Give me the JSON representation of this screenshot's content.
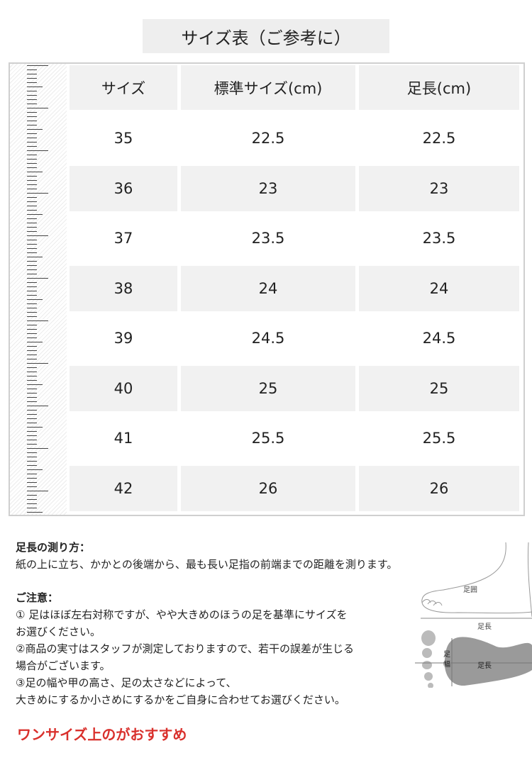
{
  "title": "サイズ表（ご参考に）",
  "table": {
    "headers": [
      "サイズ",
      "標準サイズ(cm)",
      "足長(cm)"
    ],
    "rows": [
      [
        "35",
        "22.5",
        "22.5"
      ],
      [
        "36",
        "23",
        "23"
      ],
      [
        "37",
        "23.5",
        "23.5"
      ],
      [
        "38",
        "24",
        "24"
      ],
      [
        "39",
        "24.5",
        "24.5"
      ],
      [
        "40",
        "25",
        "25"
      ],
      [
        "41",
        "25.5",
        "25.5"
      ],
      [
        "42",
        "26",
        "26"
      ]
    ]
  },
  "measure": {
    "heading": "足長の測り方：",
    "text": "紙の上に立ち、かかとの後端から、最も長い足指の前端までの距離を測ります。"
  },
  "caution": {
    "heading": "ご注意：",
    "lines": [
      "① 足はほぼ左右対称ですが、やや大きめのほうの足を基準にサイズを",
      "お選びください。",
      "②商品の実寸はスタッフが測定しておりますので、若干の誤差が生じる",
      "場合がございます。",
      "③足の幅や甲の高さ、足の太さなどによって、",
      "大きめにするか小さめにするかをご自身に合わせてお選びください。"
    ]
  },
  "recommend": "ワンサイズ上のがおすすめ",
  "diagram": {
    "girth_label": "足囲",
    "length_label": "足長",
    "width_label": "足幅",
    "length_label_2": "足長"
  },
  "colors": {
    "accent_red": "#d9302c",
    "cell_gray": "#f1f1f1"
  }
}
